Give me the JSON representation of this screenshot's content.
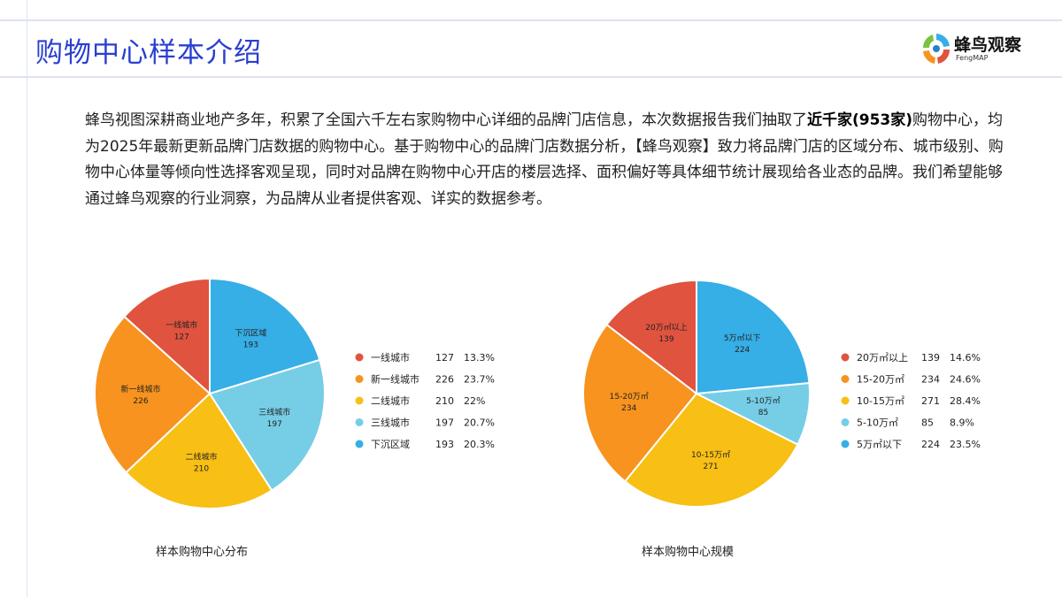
{
  "header": {
    "title": "购物中心样本介绍",
    "logo_text": "蜂鸟观察",
    "logo_sub": "FengMAP"
  },
  "intro": {
    "part1": "蜂鸟视图深耕商业地产多年，积累了全国六千左右家购物中心详细的品牌门店信息，本次数据报告我们抽取了",
    "bold": "近千家(953家)",
    "part2": "购物中心，均为2025年最新更新品牌门店数据的购物中心。基于购物中心的品牌门店数据分析，【蜂鸟观察】致力将品牌门店的区域分布、城市级别、购物中心体量等倾向性选择客观呈现，同时对品牌在购物中心开店的楼层选择、面积偏好等具体细节统计展现给各业态的品牌。我们希望能够通过蜂鸟观察的行业洞察，为品牌从业者提供客观、详实的数据参考。"
  },
  "chart_data": [
    {
      "type": "pie",
      "title": "样本购物中心分布",
      "legend": "right",
      "categories": [
        "一线城市",
        "新一线城市",
        "二线城市",
        "三线城市",
        "下沉区域"
      ],
      "values": [
        127,
        226,
        210,
        197,
        193
      ],
      "percents": [
        "13.3%",
        "23.7%",
        "22%",
        "20.7%",
        "20.3%"
      ],
      "colors": [
        "#e0533f",
        "#f7931e",
        "#f8bf14",
        "#76cde6",
        "#36aee6"
      ]
    },
    {
      "type": "pie",
      "title": "样本购物中心规模",
      "legend": "right",
      "categories": [
        "20万㎡以上",
        "15-20万㎡",
        "10-15万㎡",
        "5-10万㎡",
        "5万㎡以下"
      ],
      "values": [
        139,
        234,
        271,
        85,
        224
      ],
      "percents": [
        "14.6%",
        "24.6%",
        "28.4%",
        "8.9%",
        "23.5%"
      ],
      "colors": [
        "#e0533f",
        "#f7931e",
        "#f8bf14",
        "#76cde6",
        "#36aee6"
      ]
    }
  ]
}
